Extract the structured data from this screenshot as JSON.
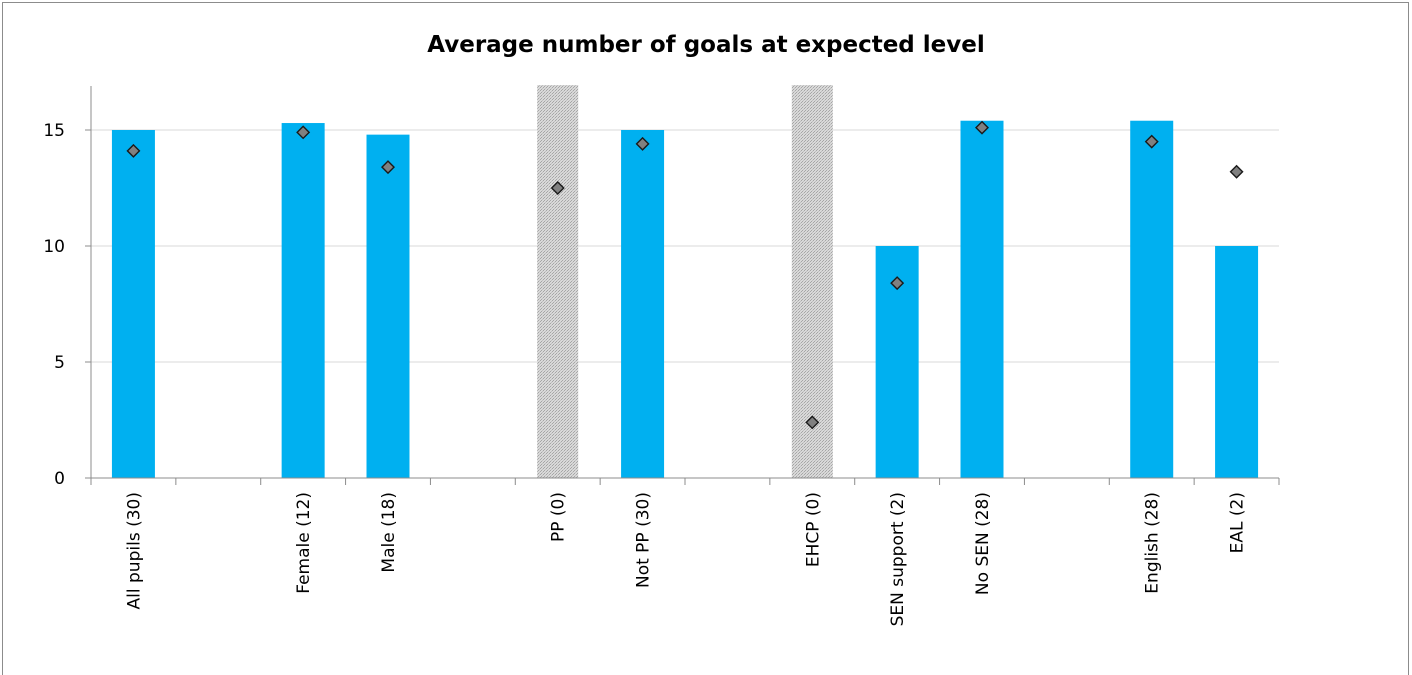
{
  "chart_data": {
    "type": "bar",
    "title": "Average number of goals at expected level",
    "xlabel": "",
    "ylabel": "",
    "ylim": [
      0,
      17
    ],
    "yticks": [
      0,
      5,
      10,
      15
    ],
    "grid": true,
    "slots": [
      "All pupils (30)",
      "",
      "Female (12)",
      "Male (18)",
      "",
      "PP (0)",
      "Not PP (30)",
      "",
      "EHCP (0)",
      "SEN support (2)",
      "No SEN (28)",
      "",
      "English (28)",
      "EAL (2)"
    ],
    "categories": [
      "All pupils (30)",
      "Female (12)",
      "Male (18)",
      "PP (0)",
      "Not PP (30)",
      "EHCP (0)",
      "SEN support (2)",
      "No SEN (28)",
      "English (28)",
      "EAL (2)"
    ],
    "series": [
      {
        "kind": "bar",
        "values": [
          15.0,
          15.3,
          14.8,
          null,
          15.0,
          null,
          10.0,
          15.4,
          15.4,
          10.0
        ],
        "color": "#00b0f0",
        "no_data_pattern": "hatched-grey"
      },
      {
        "kind": "marker",
        "marker": "diamond",
        "values": [
          14.1,
          14.9,
          13.4,
          12.5,
          14.4,
          2.4,
          8.4,
          15.1,
          14.5,
          13.2
        ],
        "color": "#808080"
      }
    ]
  }
}
